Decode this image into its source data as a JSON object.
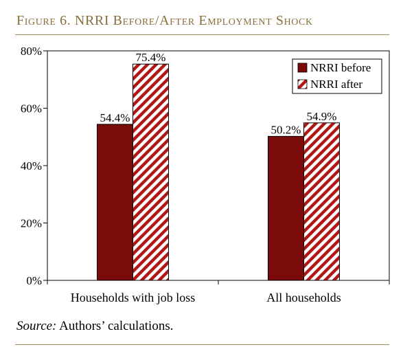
{
  "figure": {
    "title": "Figure 6. NRRI Before/After Employment Shock",
    "source_label": "Source:",
    "source_text": " Authors’ calculations."
  },
  "colors": {
    "before_fill": "#7b0a0a",
    "after_stripe": "#b01818",
    "title_color": "#8a6d3b",
    "rule_color": "#a8895a"
  },
  "chart_data": {
    "type": "bar",
    "title": "",
    "xlabel": "",
    "ylabel": "",
    "categories": [
      "Households with job loss",
      "All households"
    ],
    "series": [
      {
        "name": "NRRI before",
        "values": [
          54.4,
          50.2
        ],
        "pattern": "solid"
      },
      {
        "name": "NRRI after",
        "values": [
          75.4,
          54.9
        ],
        "pattern": "diagonal-stripes"
      }
    ],
    "data_labels": [
      [
        "54.4%",
        "50.2%"
      ],
      [
        "75.4%",
        "54.9%"
      ]
    ],
    "ylim": [
      0,
      80
    ],
    "y_ticks": [
      0,
      20,
      40,
      60,
      80
    ],
    "y_tick_labels": [
      "0%",
      "20%",
      "40%",
      "60%",
      "80%"
    ],
    "grid": false,
    "legend_position": "top-right"
  }
}
